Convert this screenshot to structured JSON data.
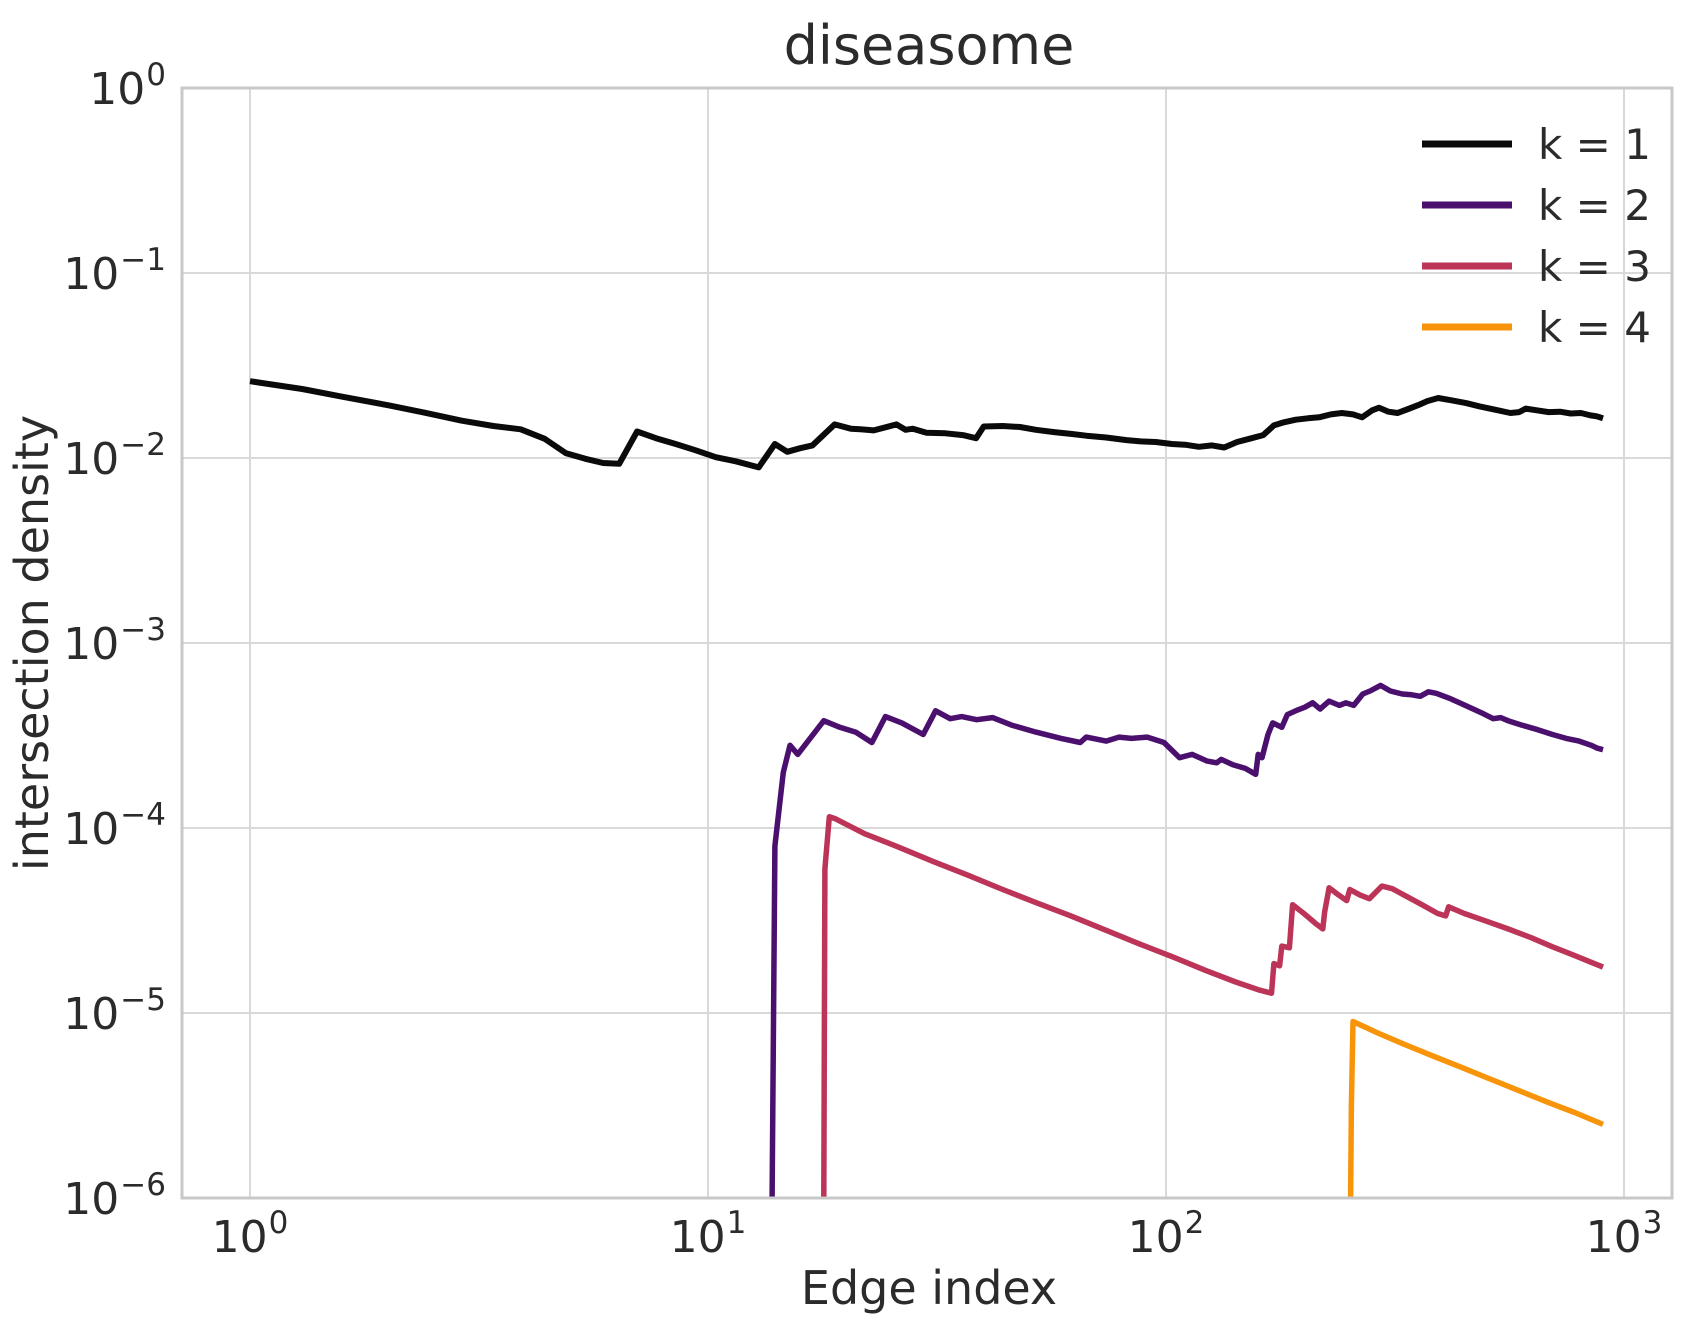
{
  "title": "diseasome",
  "xlabel": "Edge index",
  "ylabel": "intersection density",
  "colors": {
    "text": "#2b2b2b",
    "grid": "#d9d9d9",
    "spine": "#c8c8c8",
    "background": "#ffffff"
  },
  "x_ticks": [
    {
      "base": "10",
      "exp": "0",
      "value": 1
    },
    {
      "base": "10",
      "exp": "1",
      "value": 10
    },
    {
      "base": "10",
      "exp": "2",
      "value": 100
    },
    {
      "base": "10",
      "exp": "3",
      "value": 1000
    }
  ],
  "y_ticks": [
    {
      "base": "10",
      "exp": "0",
      "value": 1
    },
    {
      "base": "10",
      "exp": "−1",
      "value": 0.1
    },
    {
      "base": "10",
      "exp": "−2",
      "value": 0.01
    },
    {
      "base": "10",
      "exp": "−3",
      "value": 0.001
    },
    {
      "base": "10",
      "exp": "−4",
      "value": 0.0001
    },
    {
      "base": "10",
      "exp": "−5",
      "value": 1e-05
    },
    {
      "base": "10",
      "exp": "−6",
      "value": 1e-06
    }
  ],
  "chart_data": {
    "type": "line",
    "title": "diseasome",
    "xlabel": "Edge index",
    "ylabel": "intersection density",
    "xscale": "log",
    "yscale": "log",
    "xlim": [
      0.71,
      1270
    ],
    "ylim": [
      1e-06,
      1
    ],
    "grid": true,
    "legend_position": "upper right",
    "series": [
      {
        "name": "k = 1",
        "color": "#0a0a0a",
        "points": [
          [
            1,
            0.026
          ],
          [
            1.3,
            0.0236
          ],
          [
            1.6,
            0.0214
          ],
          [
            2,
            0.0193
          ],
          [
            2.4,
            0.0176
          ],
          [
            2.9,
            0.0159
          ],
          [
            3.4,
            0.0149
          ],
          [
            3.9,
            0.0143
          ],
          [
            4.4,
            0.0127
          ],
          [
            4.9,
            0.0106
          ],
          [
            5.4,
            0.0099
          ],
          [
            5.9,
            0.0094
          ],
          [
            6.4,
            0.0093
          ],
          [
            7,
            0.0139
          ],
          [
            7.7,
            0.0128
          ],
          [
            8.5,
            0.0119
          ],
          [
            9.4,
            0.011
          ],
          [
            10.4,
            0.0101
          ],
          [
            11.5,
            0.0096
          ],
          [
            12.9,
            0.0089
          ],
          [
            14,
            0.0119
          ],
          [
            14.9,
            0.0108
          ],
          [
            15.9,
            0.0113
          ],
          [
            16.9,
            0.0117
          ],
          [
            18.9,
            0.0152
          ],
          [
            20.5,
            0.0144
          ],
          [
            21.5,
            0.0143
          ],
          [
            23,
            0.0141
          ],
          [
            25.8,
            0.0152
          ],
          [
            27,
            0.0142
          ],
          [
            28,
            0.0144
          ],
          [
            30,
            0.0137
          ],
          [
            33,
            0.0136
          ],
          [
            36,
            0.0133
          ],
          [
            38.5,
            0.0128
          ],
          [
            40,
            0.0148
          ],
          [
            44,
            0.0149
          ],
          [
            48,
            0.0147
          ],
          [
            52,
            0.0142
          ],
          [
            57,
            0.0138
          ],
          [
            62,
            0.0135
          ],
          [
            67,
            0.0132
          ],
          [
            74,
            0.0129
          ],
          [
            82,
            0.0125
          ],
          [
            88,
            0.0123
          ],
          [
            95,
            0.0122
          ],
          [
            103,
            0.0119
          ],
          [
            110,
            0.0118
          ],
          [
            118,
            0.0115
          ],
          [
            126,
            0.0117
          ],
          [
            134,
            0.0114
          ],
          [
            143,
            0.0122
          ],
          [
            152,
            0.0127
          ],
          [
            163,
            0.0133
          ],
          [
            172,
            0.015
          ],
          [
            181,
            0.0156
          ],
          [
            192,
            0.0161
          ],
          [
            204,
            0.0164
          ],
          [
            216,
            0.0166
          ],
          [
            229,
            0.0172
          ],
          [
            242,
            0.0175
          ],
          [
            256,
            0.0172
          ],
          [
            268,
            0.0166
          ],
          [
            282,
            0.0181
          ],
          [
            292,
            0.0187
          ],
          [
            306,
            0.0178
          ],
          [
            320,
            0.0175
          ],
          [
            338,
            0.0184
          ],
          [
            355,
            0.0193
          ],
          [
            372,
            0.0203
          ],
          [
            393,
            0.0211
          ],
          [
            420,
            0.0205
          ],
          [
            452,
            0.0198
          ],
          [
            484,
            0.019
          ],
          [
            520,
            0.0183
          ],
          [
            565,
            0.0175
          ],
          [
            590,
            0.0177
          ],
          [
            610,
            0.0185
          ],
          [
            645,
            0.0181
          ],
          [
            685,
            0.0177
          ],
          [
            725,
            0.0178
          ],
          [
            765,
            0.0174
          ],
          [
            805,
            0.0175
          ],
          [
            845,
            0.017
          ],
          [
            872,
            0.0168
          ],
          [
            900,
            0.0164
          ]
        ]
      },
      {
        "name": "k = 2",
        "color": "#4b0f6e",
        "points": [
          [
            13.8,
            1e-06
          ],
          [
            14,
            8e-05
          ],
          [
            14.6,
            0.0002
          ],
          [
            15.1,
            0.00028
          ],
          [
            15.7,
            0.00025
          ],
          [
            17.9,
            0.00038
          ],
          [
            19.4,
            0.00035
          ],
          [
            21,
            0.00033
          ],
          [
            22.8,
            0.00029
          ],
          [
            24.4,
            0.0004
          ],
          [
            26.5,
            0.00037
          ],
          [
            29.5,
            0.00032
          ],
          [
            31.4,
            0.00043
          ],
          [
            33.8,
            0.00039
          ],
          [
            35.8,
            0.0004
          ],
          [
            38.6,
            0.000385
          ],
          [
            41.8,
            0.000395
          ],
          [
            46,
            0.00036
          ],
          [
            52,
            0.00033
          ],
          [
            59,
            0.000305
          ],
          [
            65,
            0.00029
          ],
          [
            67,
            0.00031
          ],
          [
            74,
            0.000295
          ],
          [
            79,
            0.00031
          ],
          [
            84,
            0.000305
          ],
          [
            91,
            0.00031
          ],
          [
            99,
            0.00029
          ],
          [
            107,
            0.00024
          ],
          [
            114,
            0.00025
          ],
          [
            123,
            0.00023
          ],
          [
            129,
            0.000225
          ],
          [
            132,
            0.000235
          ],
          [
            140,
            0.00022
          ],
          [
            149,
            0.00021
          ],
          [
            157,
            0.000195
          ],
          [
            159,
            0.00025
          ],
          [
            162,
            0.00024
          ],
          [
            167,
            0.00032
          ],
          [
            171,
            0.00037
          ],
          [
            179,
            0.00035
          ],
          [
            184,
            0.00041
          ],
          [
            194,
            0.000435
          ],
          [
            201,
            0.00045
          ],
          [
            209,
            0.000475
          ],
          [
            217,
            0.00044
          ],
          [
            227,
            0.000485
          ],
          [
            239,
            0.00046
          ],
          [
            247,
            0.000475
          ],
          [
            257,
            0.00046
          ],
          [
            269,
            0.00053
          ],
          [
            279,
            0.00055
          ],
          [
            294,
            0.00059
          ],
          [
            309,
            0.00055
          ],
          [
            328,
            0.00053
          ],
          [
            344,
            0.000525
          ],
          [
            359,
            0.000515
          ],
          [
            374,
            0.000545
          ],
          [
            389,
            0.000535
          ],
          [
            418,
            0.0005
          ],
          [
            450,
            0.00046
          ],
          [
            488,
            0.00042
          ],
          [
            518,
            0.00039
          ],
          [
            538,
            0.000395
          ],
          [
            558,
            0.00038
          ],
          [
            598,
            0.00036
          ],
          [
            648,
            0.00034
          ],
          [
            698,
            0.00032
          ],
          [
            748,
            0.000305
          ],
          [
            798,
            0.000295
          ],
          [
            848,
            0.00028
          ],
          [
            875,
            0.00027
          ],
          [
            900,
            0.000265
          ]
        ]
      },
      {
        "name": "k = 3",
        "color": "#bc3458",
        "points": [
          [
            17.9,
            1e-06
          ],
          [
            18,
            6e-05
          ],
          [
            18.4,
            0.000115
          ],
          [
            19,
            0.000112
          ],
          [
            22,
            9.3e-05
          ],
          [
            26,
            7.9e-05
          ],
          [
            31,
            6.6e-05
          ],
          [
            37,
            5.55e-05
          ],
          [
            44,
            4.65e-05
          ],
          [
            52,
            3.95e-05
          ],
          [
            62,
            3.35e-05
          ],
          [
            74,
            2.8e-05
          ],
          [
            88,
            2.35e-05
          ],
          [
            104,
            2e-05
          ],
          [
            122,
            1.7e-05
          ],
          [
            142,
            1.47e-05
          ],
          [
            160,
            1.33e-05
          ],
          [
            170,
            1.28e-05
          ],
          [
            172,
            1.85e-05
          ],
          [
            177,
            1.8e-05
          ],
          [
            179,
            2.3e-05
          ],
          [
            186,
            2.25e-05
          ],
          [
            189,
            3.85e-05
          ],
          [
            200,
            3.45e-05
          ],
          [
            212,
            3.05e-05
          ],
          [
            220,
            2.85e-05
          ],
          [
            222,
            3.5e-05
          ],
          [
            227,
            4.75e-05
          ],
          [
            238,
            4.35e-05
          ],
          [
            248,
            4.05e-05
          ],
          [
            252,
            4.65e-05
          ],
          [
            265,
            4.35e-05
          ],
          [
            278,
            4.15e-05
          ],
          [
            296,
            4.85e-05
          ],
          [
            312,
            4.7e-05
          ],
          [
            336,
            4.25e-05
          ],
          [
            362,
            3.85e-05
          ],
          [
            392,
            3.45e-05
          ],
          [
            408,
            3.35e-05
          ],
          [
            414,
            3.75e-05
          ],
          [
            448,
            3.45e-05
          ],
          [
            498,
            3.15e-05
          ],
          [
            558,
            2.85e-05
          ],
          [
            628,
            2.55e-05
          ],
          [
            698,
            2.28e-05
          ],
          [
            778,
            2.05e-05
          ],
          [
            848,
            1.88e-05
          ],
          [
            900,
            1.77e-05
          ]
        ]
      },
      {
        "name": "k = 4",
        "color": "#f8940a",
        "points": [
          [
            253,
            1e-06
          ],
          [
            254,
            3.2e-06
          ],
          [
            256,
            9e-06
          ],
          [
            290,
            7.8e-06
          ],
          [
            330,
            6.8e-06
          ],
          [
            380,
            5.9e-06
          ],
          [
            440,
            5.1e-06
          ],
          [
            510,
            4.4e-06
          ],
          [
            590,
            3.8e-06
          ],
          [
            680,
            3.3e-06
          ],
          [
            780,
            2.9e-06
          ],
          [
            900,
            2.5e-06
          ]
        ]
      }
    ]
  }
}
